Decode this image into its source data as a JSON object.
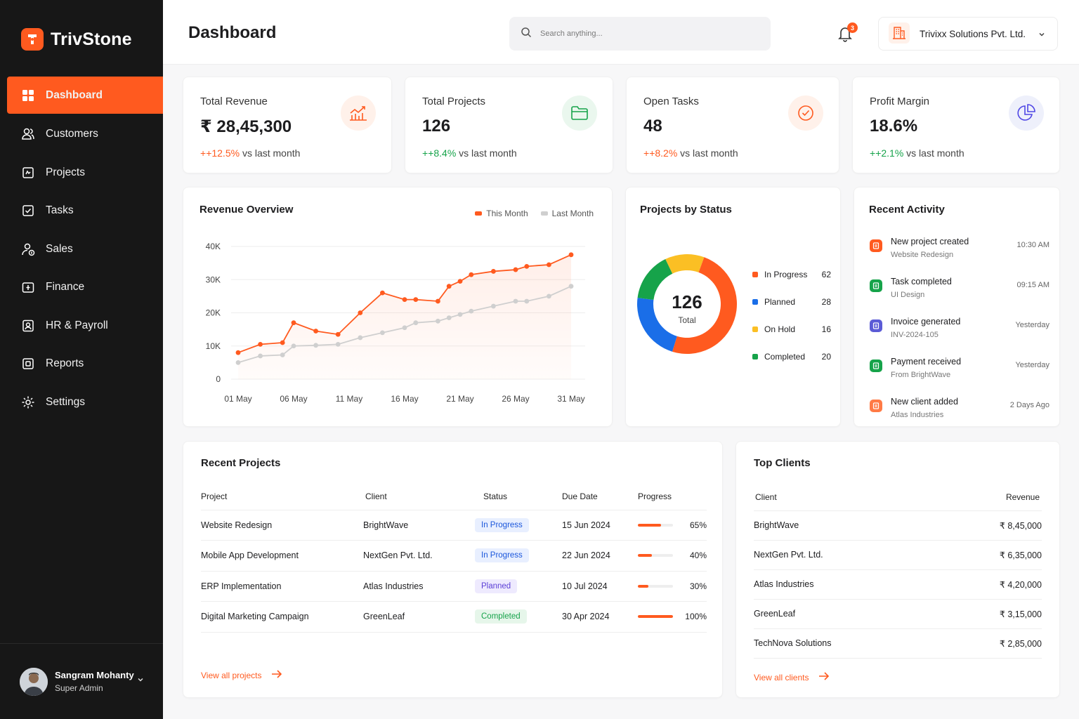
{
  "brand": {
    "name": "TrivStone",
    "accent": "#ff5a1f"
  },
  "sidebar": {
    "items": [
      {
        "label": "Dashboard",
        "icon": "grid-icon"
      },
      {
        "label": "Customers",
        "icon": "users-icon"
      },
      {
        "label": "Projects",
        "icon": "clipboard-icon"
      },
      {
        "label": "Tasks",
        "icon": "checkbox-icon"
      },
      {
        "label": "Sales",
        "icon": "person-money-icon"
      },
      {
        "label": "Finance",
        "icon": "wallet-icon"
      },
      {
        "label": "HR & Payroll",
        "icon": "id-card-icon"
      },
      {
        "label": "Reports",
        "icon": "report-icon"
      },
      {
        "label": "Settings",
        "icon": "gear-icon"
      }
    ],
    "user": {
      "name": "Sangram Mohanty",
      "role": "Super Admin"
    }
  },
  "header": {
    "title": "Dashboard",
    "search_placeholder": "Search anything...",
    "notifications": "3",
    "company": "Trivixx Solutions Pvt. Ltd."
  },
  "stats": [
    {
      "label": "Total Revenue",
      "value": "₹ 28,45,300",
      "delta": "+12.5%",
      "delta_color": "#ff5a1f",
      "suffix": "vs last month",
      "icon": "chart-icon"
    },
    {
      "label": "Total Projects",
      "value": "126",
      "delta": "+8.4%",
      "delta_color": "#16a34a",
      "suffix": "vs last month",
      "icon": "folder-icon"
    },
    {
      "label": "Open Tasks",
      "value": "48",
      "delta": "+8.2%",
      "delta_color": "#ff5a1f",
      "suffix": "vs last month",
      "icon": "check-circle-icon"
    },
    {
      "label": "Profit Margin",
      "value": "18.6%",
      "delta": "+2.1%",
      "delta_color": "#16a34a",
      "suffix": "vs last month",
      "icon": "pie-icon"
    }
  ],
  "revenue_overview": {
    "title": "Revenue Overview",
    "legend": [
      "This Month",
      "Last Month"
    ],
    "chart_data": {
      "type": "line",
      "x": [
        "01 May",
        "03 May",
        "05 May",
        "06 May",
        "08 May",
        "10 May",
        "12 May",
        "14 May",
        "16 May",
        "17 May",
        "19 May",
        "20 May",
        "21 May",
        "22 May",
        "24 May",
        "26 May",
        "27 May",
        "29 May",
        "31 May"
      ],
      "xticks": [
        "01 May",
        "06 May",
        "11 May",
        "16 May",
        "21 May",
        "26 May",
        "31 May"
      ],
      "yticks": [
        "0",
        "10K",
        "20K",
        "30K",
        "40K"
      ],
      "ylim": [
        0,
        40000
      ],
      "series": [
        {
          "name": "This Month",
          "color": "#ff5a1f",
          "values": [
            8000,
            10500,
            11000,
            17000,
            14500,
            13500,
            20000,
            26000,
            24000,
            24000,
            23500,
            28000,
            29500,
            31500,
            32500,
            33000,
            34000,
            34500,
            37500
          ]
        },
        {
          "name": "Last Month",
          "color": "#cfcfcf",
          "values": [
            5000,
            7000,
            7300,
            10000,
            10200,
            10500,
            12500,
            14000,
            15500,
            17000,
            17500,
            18500,
            19500,
            20500,
            22000,
            23500,
            23500,
            25000,
            28000
          ]
        }
      ]
    }
  },
  "projects_by_status": {
    "title": "Projects by Status",
    "total": "126",
    "total_label": "Total",
    "chart_data": {
      "type": "pie",
      "labels": [
        "In Progress",
        "Planned",
        "On Hold",
        "Completed"
      ],
      "values": [
        62,
        28,
        16,
        20
      ],
      "colors": [
        "#ff5a1f",
        "#1a6ee8",
        "#fbbf24",
        "#16a34a"
      ]
    }
  },
  "recent_activity": {
    "title": "Recent Activity",
    "items": [
      {
        "title": "New project created",
        "sub": "Website Redesign",
        "time": "10:30 AM",
        "color": "#ff5a1f"
      },
      {
        "title": "Task completed",
        "sub": "UI Design",
        "time": "09:15 AM",
        "color": "#16a34a"
      },
      {
        "title": "Invoice generated",
        "sub": "INV-2024-105",
        "time": "Yesterday",
        "color": "#5b5bd6"
      },
      {
        "title": "Payment received",
        "sub": "From BrightWave",
        "time": "Yesterday",
        "color": "#16a34a"
      },
      {
        "title": "New client added",
        "sub": "Atlas Industries",
        "time": "2 Days Ago",
        "color": "#ff7a45"
      }
    ]
  },
  "recent_projects": {
    "title": "Recent Projects",
    "columns": [
      "Project",
      "Client",
      "Status",
      "Due Date",
      "Progress"
    ],
    "rows": [
      {
        "project": "Website Redesign",
        "client": "BrightWave",
        "status": "In Progress",
        "due": "15 Jun 2024",
        "progress": 65,
        "progress_label": "65%"
      },
      {
        "project": "Mobile App Development",
        "client": "NextGen Pvt. Ltd.",
        "status": "In Progress",
        "due": "22 Jun 2024",
        "progress": 40,
        "progress_label": "40%"
      },
      {
        "project": "ERP Implementation",
        "client": "Atlas Industries",
        "status": "Planned",
        "due": "10 Jul 2024",
        "progress": 30,
        "progress_label": "30%"
      },
      {
        "project": "Digital Marketing Campaign",
        "client": "GreenLeaf",
        "status": "Completed",
        "due": "30 Apr 2024",
        "progress": 100,
        "progress_label": "100%"
      }
    ],
    "view_all": "View all projects"
  },
  "top_clients": {
    "title": "Top Clients",
    "columns": [
      "Client",
      "Revenue"
    ],
    "rows": [
      {
        "client": "BrightWave",
        "revenue": "₹ 8,45,000"
      },
      {
        "client": "NextGen Pvt. Ltd.",
        "revenue": "₹ 6,35,000"
      },
      {
        "client": "Atlas Industries",
        "revenue": "₹ 4,20,000"
      },
      {
        "client": "GreenLeaf",
        "revenue": "₹ 3,15,000"
      },
      {
        "client": "TechNova Solutions",
        "revenue": "₹ 2,85,000"
      }
    ],
    "view_all": "View all clients"
  }
}
